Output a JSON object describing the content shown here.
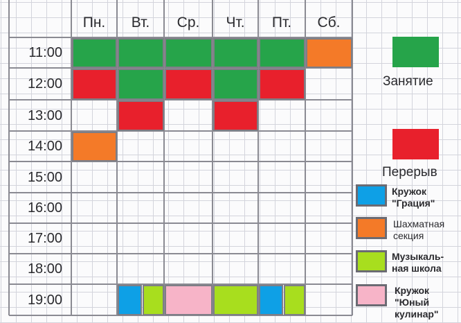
{
  "colors": {
    "lesson": "#26a44a",
    "break": "#e8202c",
    "gracia": "#0ea0e6",
    "chess": "#f47a28",
    "music": "#a8de1e",
    "culinary": "#f7b4c8"
  },
  "days": [
    "Пн.",
    "Вт.",
    "Ср.",
    "Чт.",
    "Пт.",
    "Сб."
  ],
  "times": [
    "11:00",
    "12:00",
    "13:00",
    "14:00",
    "15:00",
    "16:00",
    "17:00",
    "18:00",
    "19:00"
  ],
  "schedule": [
    {
      "day": 0,
      "time": 0,
      "kind": "lesson"
    },
    {
      "day": 1,
      "time": 0,
      "kind": "lesson"
    },
    {
      "day": 2,
      "time": 0,
      "kind": "lesson"
    },
    {
      "day": 3,
      "time": 0,
      "kind": "lesson"
    },
    {
      "day": 4,
      "time": 0,
      "kind": "lesson"
    },
    {
      "day": 5,
      "time": 0,
      "kind": "chess"
    },
    {
      "day": 0,
      "time": 1,
      "kind": "break"
    },
    {
      "day": 1,
      "time": 1,
      "kind": "lesson"
    },
    {
      "day": 2,
      "time": 1,
      "kind": "break"
    },
    {
      "day": 3,
      "time": 1,
      "kind": "lesson"
    },
    {
      "day": 4,
      "time": 1,
      "kind": "break"
    },
    {
      "day": 1,
      "time": 2,
      "kind": "break"
    },
    {
      "day": 3,
      "time": 2,
      "kind": "break"
    },
    {
      "day": 0,
      "time": 3,
      "kind": "chess"
    },
    {
      "day": 1,
      "time": 8,
      "kind": "gracia",
      "part": "left"
    },
    {
      "day": 1,
      "time": 8,
      "kind": "music",
      "part": "right"
    },
    {
      "day": 2,
      "time": 8,
      "kind": "culinary"
    },
    {
      "day": 3,
      "time": 8,
      "kind": "music"
    },
    {
      "day": 4,
      "time": 8,
      "kind": "gracia",
      "part": "left"
    },
    {
      "day": 4,
      "time": 8,
      "kind": "music",
      "part": "right"
    }
  ],
  "legend": {
    "lesson": "Занятие",
    "break": "Перерыв",
    "gracia_line1": "Кружок",
    "gracia_line2": "\"Грация\"",
    "chess_line1": "Шахматная",
    "chess_line2": "секция",
    "music_line1": "Музыкаль-",
    "music_line2": "ная школа",
    "culinary_line1": "Кружок",
    "culinary_line2": "\"Юный",
    "culinary_line3": "кулинар\""
  }
}
